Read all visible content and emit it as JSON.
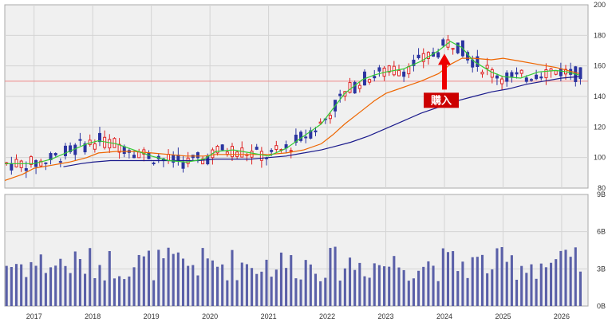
{
  "chart_data": [
    {
      "type": "candlestick",
      "panel": "price",
      "ylim": [
        80,
        200
      ],
      "y_ticks": [
        "200",
        "180",
        "160",
        "140",
        "120",
        "100",
        "80"
      ],
      "y_tick_values": [
        200,
        180,
        160,
        140,
        120,
        100,
        80
      ],
      "grid": true,
      "reference_line": 150,
      "annotation": {
        "label": "購入",
        "x": 2024.0,
        "y": 168,
        "arrow_color": "#ee0000",
        "box_color": "#cc0000"
      },
      "colors": {
        "up": "#dd2222",
        "down": "#2a34a0",
        "ma_short": "#33cc33",
        "ma_mid": "#ee6600",
        "ma_long": "#1a1a8c",
        "reference": "#ee8888"
      },
      "ma_short": [
        [
          2016.5,
          96
        ],
        [
          2016.8,
          96
        ],
        [
          2017.0,
          96
        ],
        [
          2017.3,
          99
        ],
        [
          2017.6,
          104
        ],
        [
          2017.9,
          109
        ],
        [
          2018.1,
          111
        ],
        [
          2018.4,
          109
        ],
        [
          2018.7,
          105
        ],
        [
          2019.0,
          101
        ],
        [
          2019.3,
          98
        ],
        [
          2019.6,
          97
        ],
        [
          2019.9,
          99
        ],
        [
          2020.1,
          104
        ],
        [
          2020.4,
          105
        ],
        [
          2020.7,
          103
        ],
        [
          2021.0,
          101
        ],
        [
          2021.3,
          106
        ],
        [
          2021.6,
          114
        ],
        [
          2021.9,
          122
        ],
        [
          2022.1,
          132
        ],
        [
          2022.3,
          142
        ],
        [
          2022.6,
          151
        ],
        [
          2022.8,
          154
        ],
        [
          2023.0,
          156
        ],
        [
          2023.3,
          158
        ],
        [
          2023.6,
          163
        ],
        [
          2023.9,
          170
        ],
        [
          2024.1,
          176
        ],
        [
          2024.3,
          172
        ],
        [
          2024.5,
          163
        ],
        [
          2024.8,
          156
        ],
        [
          2025.0,
          153
        ],
        [
          2025.3,
          152
        ],
        [
          2025.6,
          156
        ],
        [
          2025.9,
          157
        ],
        [
          2026.1,
          156
        ],
        [
          2026.3,
          154
        ]
      ],
      "ma_mid": [
        [
          2016.5,
          85
        ],
        [
          2016.8,
          89
        ],
        [
          2017.0,
          93
        ],
        [
          2017.3,
          95
        ],
        [
          2017.6,
          97
        ],
        [
          2017.9,
          100
        ],
        [
          2018.1,
          103
        ],
        [
          2018.4,
          104
        ],
        [
          2018.7,
          104
        ],
        [
          2019.0,
          103
        ],
        [
          2019.3,
          102
        ],
        [
          2019.6,
          101
        ],
        [
          2019.9,
          101
        ],
        [
          2020.1,
          102
        ],
        [
          2020.4,
          102
        ],
        [
          2020.7,
          102
        ],
        [
          2021.0,
          102
        ],
        [
          2021.3,
          103
        ],
        [
          2021.6,
          105
        ],
        [
          2021.9,
          109
        ],
        [
          2022.1,
          115
        ],
        [
          2022.3,
          122
        ],
        [
          2022.6,
          131
        ],
        [
          2022.8,
          137
        ],
        [
          2023.0,
          142
        ],
        [
          2023.3,
          146
        ],
        [
          2023.6,
          150
        ],
        [
          2023.9,
          155
        ],
        [
          2024.1,
          161
        ],
        [
          2024.3,
          165
        ],
        [
          2024.5,
          165
        ],
        [
          2024.8,
          164
        ],
        [
          2025.0,
          165
        ],
        [
          2025.3,
          163
        ],
        [
          2025.6,
          161
        ],
        [
          2025.9,
          159
        ],
        [
          2026.1,
          157
        ],
        [
          2026.3,
          155
        ]
      ],
      "ma_long": [
        [
          2017.5,
          94
        ],
        [
          2017.8,
          96
        ],
        [
          2018.0,
          97
        ],
        [
          2018.3,
          98
        ],
        [
          2018.6,
          98
        ],
        [
          2018.9,
          98
        ],
        [
          2019.2,
          98
        ],
        [
          2019.5,
          98
        ],
        [
          2019.8,
          98
        ],
        [
          2020.1,
          99
        ],
        [
          2020.4,
          99
        ],
        [
          2020.7,
          99
        ],
        [
          2021.0,
          100
        ],
        [
          2021.3,
          101
        ],
        [
          2021.6,
          103
        ],
        [
          2021.9,
          105
        ],
        [
          2022.1,
          107
        ],
        [
          2022.4,
          110
        ],
        [
          2022.7,
          114
        ],
        [
          2023.0,
          119
        ],
        [
          2023.3,
          124
        ],
        [
          2023.6,
          129
        ],
        [
          2023.9,
          133
        ],
        [
          2024.2,
          137
        ],
        [
          2024.5,
          140
        ],
        [
          2024.8,
          143
        ],
        [
          2025.1,
          145
        ],
        [
          2025.4,
          148
        ],
        [
          2025.7,
          150
        ],
        [
          2026.0,
          152
        ],
        [
          2026.3,
          153
        ]
      ]
    },
    {
      "type": "bar",
      "panel": "volume",
      "ylim": [
        0,
        9
      ],
      "y_ticks": [
        "9B",
        "6B",
        "3B",
        "0B"
      ],
      "y_tick_values": [
        9,
        6,
        3,
        0
      ],
      "grid": true,
      "color": "#5a60a8",
      "unit": "B"
    }
  ],
  "x_axis": {
    "labels": [
      "2017",
      "2018",
      "2019",
      "2020",
      "2021",
      "2022",
      "2023",
      "2024",
      "2025",
      "2026"
    ],
    "values": [
      2017,
      2018,
      2019,
      2020,
      2021,
      2022,
      2023,
      2024,
      2025,
      2026
    ],
    "range": [
      2016.5,
      2026.45
    ]
  }
}
